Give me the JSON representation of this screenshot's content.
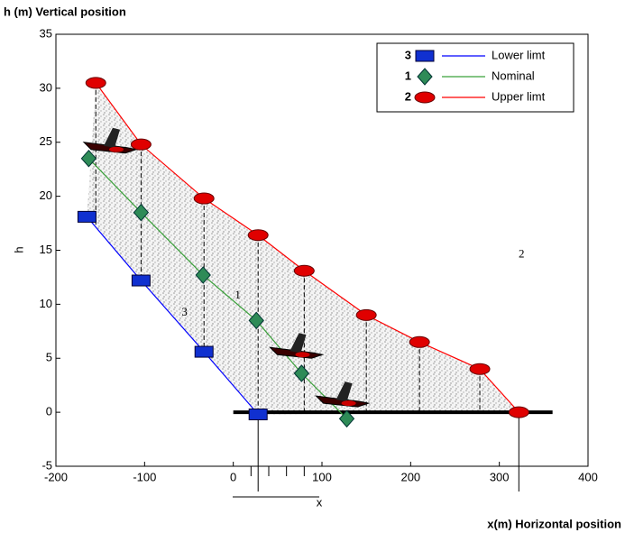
{
  "chart_data": {
    "type": "line",
    "title": "h (m)  Vertical position",
    "ylabel": "h",
    "xlabel": "x(m)  Horizontal position",
    "xlabel_small": "x",
    "xlim": [
      -200,
      400
    ],
    "xticks": [
      -200,
      -100,
      0,
      100,
      200,
      300,
      400
    ],
    "ylim": [
      -5,
      35
    ],
    "yticks": [
      -5,
      0,
      5,
      10,
      15,
      20,
      25,
      30,
      35
    ],
    "series": [
      {
        "name": "Lower limt",
        "marker_label": "3",
        "color": "#0000ff",
        "marker": "square",
        "marker_color": "#1030d0",
        "x": [
          -165,
          -104,
          -33,
          28
        ],
        "values": [
          18.1,
          12.2,
          5.6,
          -0.2
        ]
      },
      {
        "name": "Nominal",
        "marker_label": "1",
        "color": "#3aa03a",
        "marker": "diamond",
        "marker_color": "#2e8b57",
        "x": [
          -163,
          -104,
          -34,
          26,
          77,
          128
        ],
        "values": [
          23.5,
          18.5,
          12.7,
          8.5,
          3.6,
          -0.6
        ]
      },
      {
        "name": "Upper limt",
        "marker_label": "2",
        "color": "#ff0000",
        "marker": "ellipse",
        "marker_color": "#e00000",
        "x": [
          -155,
          -104,
          -33,
          28,
          80,
          150,
          210,
          278,
          322
        ],
        "values": [
          30.5,
          24.8,
          19.8,
          16.4,
          13.1,
          9.0,
          6.5,
          4.0,
          0
        ]
      }
    ],
    "legend": "upper right"
  }
}
